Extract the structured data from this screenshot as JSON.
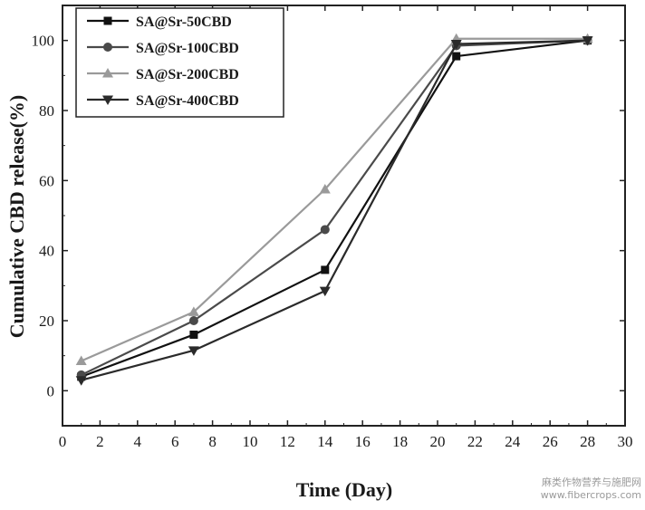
{
  "chart_data": {
    "type": "line",
    "xlabel": "Time (Day)",
    "ylabel": "Cumulative CBD release(%)",
    "xlim": [
      0,
      30
    ],
    "ylim": [
      -10,
      110
    ],
    "xticks": [
      0,
      2,
      4,
      6,
      8,
      10,
      12,
      14,
      16,
      18,
      20,
      22,
      24,
      26,
      28,
      30
    ],
    "yticks": [
      0,
      20,
      40,
      60,
      80,
      100
    ],
    "grid": false,
    "legend_position": "top-left",
    "x": [
      1,
      7,
      14,
      21,
      28
    ],
    "series": [
      {
        "name": "SA@Sr-50CBD",
        "values": [
          4,
          16,
          34.5,
          95.5,
          100
        ],
        "marker": "square",
        "color": "#111111"
      },
      {
        "name": "SA@Sr-100CBD",
        "values": [
          4.5,
          20,
          46,
          98.5,
          100
        ],
        "marker": "circle",
        "color": "#4a4a4a"
      },
      {
        "name": "SA@Sr-200CBD",
        "values": [
          8.5,
          22.5,
          57.5,
          100.5,
          100.5
        ],
        "marker": "triangle-up",
        "color": "#9a9a9a"
      },
      {
        "name": "SA@Sr-400CBD",
        "values": [
          3,
          11.5,
          28.5,
          99,
          100
        ],
        "marker": "triangle-down",
        "color": "#2a2a2a"
      }
    ]
  },
  "watermark": {
    "line1": "麻类作物营养与施肥网",
    "line2": "www.fibercrops.com"
  }
}
